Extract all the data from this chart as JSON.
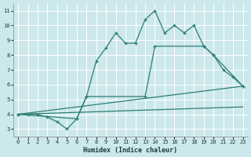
{
  "xlabel": "Humidex (Indice chaleur)",
  "background_color": "#cce8ec",
  "grid_color": "#ffffff",
  "line_color": "#2d7d74",
  "xlim": [
    -0.5,
    23.5
  ],
  "ylim": [
    2.5,
    11.5
  ],
  "xticks": [
    0,
    1,
    2,
    3,
    4,
    5,
    6,
    7,
    8,
    9,
    10,
    11,
    12,
    13,
    14,
    15,
    16,
    17,
    18,
    19,
    20,
    21,
    22,
    23
  ],
  "yticks": [
    3,
    4,
    5,
    6,
    7,
    8,
    9,
    10,
    11
  ],
  "series1_x": [
    0,
    1,
    2,
    3,
    4,
    5,
    6,
    7,
    8,
    9,
    10,
    11,
    12,
    13,
    14,
    15,
    16,
    17,
    18,
    19,
    20,
    21,
    22,
    23
  ],
  "series1_y": [
    4.0,
    4.0,
    4.0,
    3.8,
    3.5,
    3.0,
    3.7,
    5.2,
    7.6,
    8.5,
    9.5,
    8.8,
    8.8,
    10.4,
    11.0,
    9.5,
    10.0,
    9.5,
    10.0,
    8.6,
    8.0,
    7.0,
    6.5,
    5.9
  ],
  "series2_x": [
    0,
    6,
    7,
    13,
    14,
    19,
    20,
    23
  ],
  "series2_y": [
    4.0,
    3.7,
    5.2,
    5.2,
    8.6,
    8.6,
    8.0,
    5.9
  ],
  "series3_x": [
    0,
    23
  ],
  "series3_y": [
    4.0,
    5.9
  ],
  "series4_x": [
    0,
    23
  ],
  "series4_y": [
    4.0,
    4.5
  ]
}
